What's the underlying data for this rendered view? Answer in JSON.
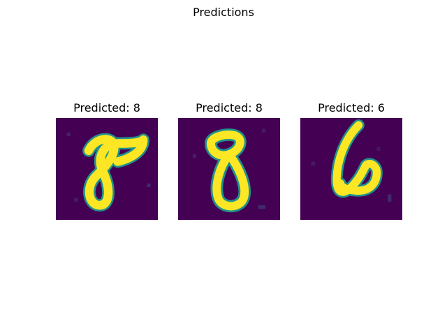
{
  "figure": {
    "suptitle": "Predictions"
  },
  "panels": [
    {
      "title": "Predicted: 8",
      "digit": 8
    },
    {
      "title": "Predicted: 8",
      "digit": 8
    },
    {
      "title": "Predicted: 6",
      "digit": 6
    }
  ],
  "colors": {
    "background_low": "#440154",
    "stroke_high": "#fde725",
    "edge_mid": "#21918c"
  }
}
